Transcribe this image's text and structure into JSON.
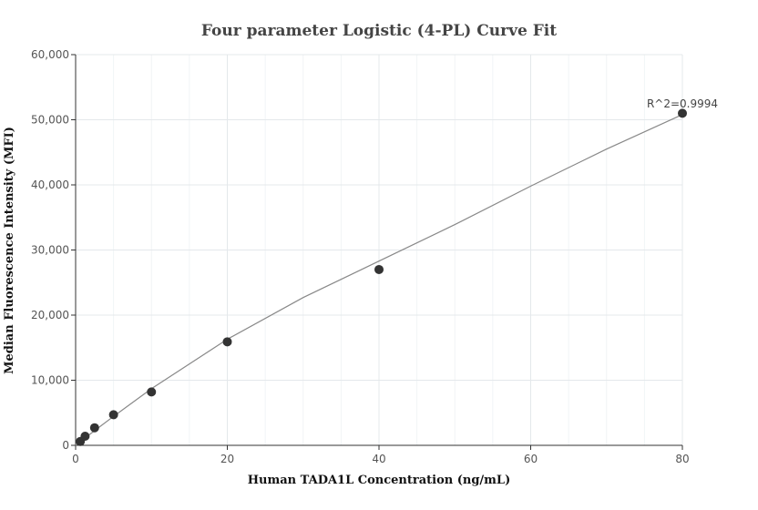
{
  "chart_data": {
    "type": "scatter",
    "title": "Four parameter Logistic (4-PL) Curve Fit",
    "xlabel": "Human TADA1L Concentration (ng/mL)",
    "ylabel": "Median Fluorescence Intensity (MFI)",
    "xlim": [
      0,
      80
    ],
    "ylim": [
      0,
      60000
    ],
    "x_ticks": [
      0,
      20,
      40,
      60,
      80
    ],
    "y_ticks": [
      0,
      10000,
      20000,
      30000,
      40000,
      50000,
      60000
    ],
    "x_tick_labels": [
      "0",
      "20",
      "40",
      "60",
      "80"
    ],
    "y_tick_labels": [
      "0",
      "10,000",
      "20,000",
      "30,000",
      "40,000",
      "50,000",
      "60,000"
    ],
    "grid": true,
    "points": [
      {
        "x": 0.625,
        "y": 600
      },
      {
        "x": 1.25,
        "y": 1400
      },
      {
        "x": 2.5,
        "y": 2700
      },
      {
        "x": 5,
        "y": 4700
      },
      {
        "x": 10,
        "y": 8200
      },
      {
        "x": 20,
        "y": 15900
      },
      {
        "x": 40,
        "y": 27000
      },
      {
        "x": 80,
        "y": 51000
      }
    ],
    "fit_curve": {
      "x": [
        0,
        2.5,
        5,
        10,
        20,
        30,
        40,
        50,
        60,
        70,
        80
      ],
      "y": [
        0,
        2250,
        4450,
        8700,
        16300,
        22700,
        28300,
        33900,
        39800,
        45500,
        50800
      ]
    },
    "annotation": "R^2=0.9994",
    "point_color": "#333333",
    "curve_color": "#888888"
  }
}
